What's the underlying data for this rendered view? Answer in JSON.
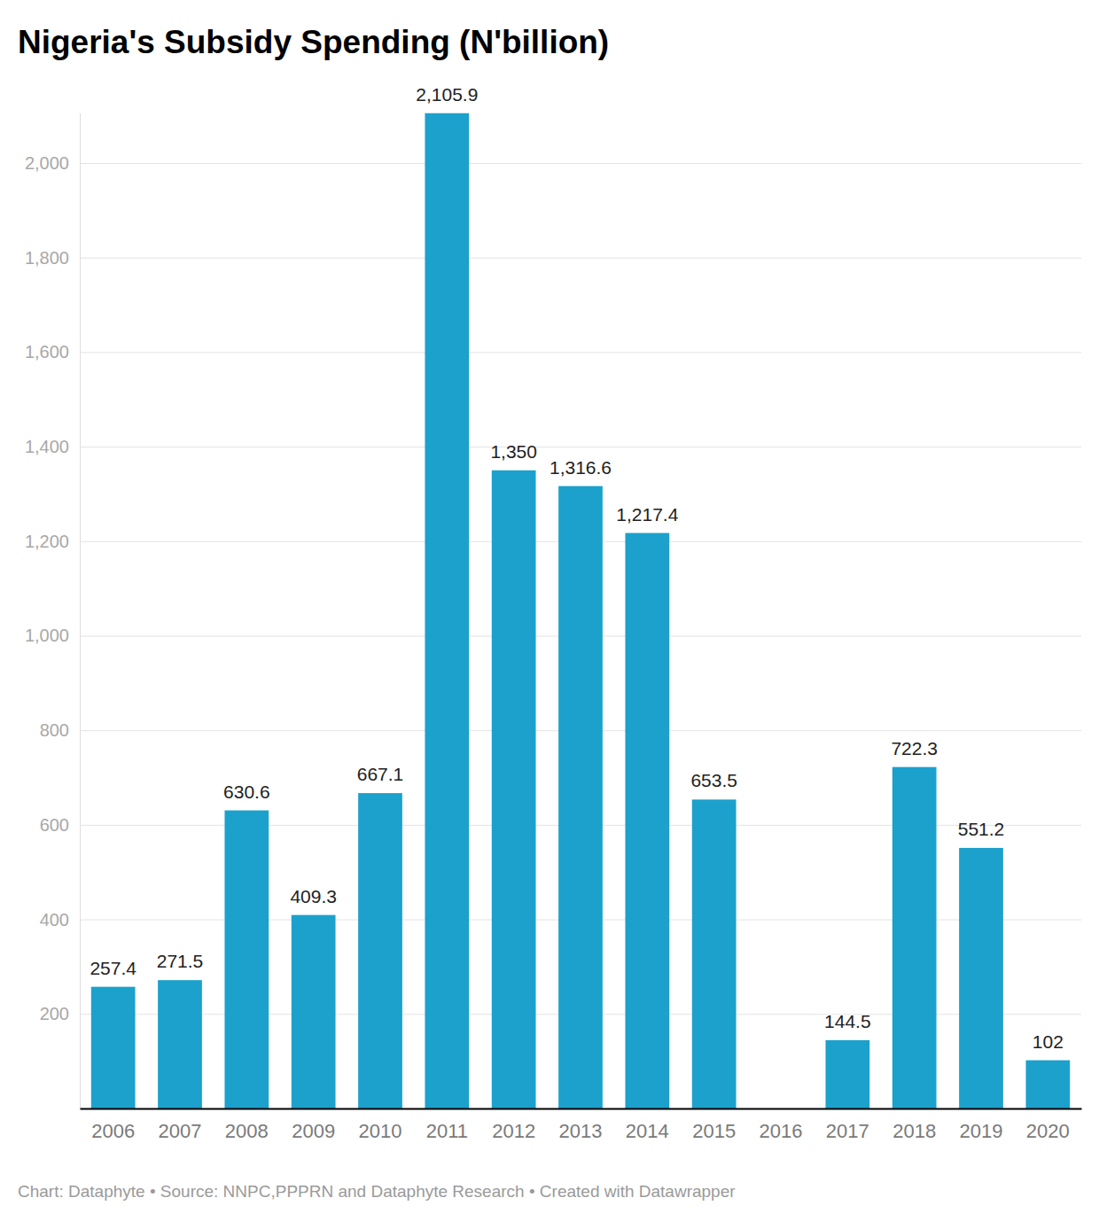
{
  "chart_data": {
    "type": "bar",
    "title": "Nigeria's Subsidy Spending (N'billion)",
    "source": "Chart: Dataphyte • Source: NNPC,PPPRN and Dataphyte Research • Created with Datawrapper",
    "categories": [
      "2006",
      "2007",
      "2008",
      "2009",
      "2010",
      "2011",
      "2012",
      "2013",
      "2014",
      "2015",
      "2016",
      "2017",
      "2018",
      "2019",
      "2020"
    ],
    "values": [
      257.4,
      271.5,
      630.6,
      409.3,
      667.1,
      2105.9,
      1350,
      1316.6,
      1217.4,
      653.5,
      null,
      144.5,
      722.3,
      551.2,
      102
    ],
    "value_labels": [
      "257.4",
      "271.5",
      "630.6",
      "409.3",
      "667.1",
      "2,105.9",
      "1,350",
      "1,316.6",
      "1,217.4",
      "653.5",
      null,
      "144.5",
      "722.3",
      "551.2",
      "102"
    ],
    "color": "#1ba1cc",
    "ylim": [
      0,
      2105.9
    ],
    "yticks": [
      200,
      400,
      600,
      800,
      {
        "value": 1000,
        "label": "1,000"
      },
      {
        "value": 1200,
        "label": "1,200"
      },
      {
        "value": 1400,
        "label": "1,400"
      },
      {
        "value": 1600,
        "label": "1,600"
      },
      {
        "value": 1800,
        "label": "1,800"
      },
      {
        "value": 2000,
        "label": "2,000"
      }
    ],
    "grid": true,
    "data_labels": true
  }
}
